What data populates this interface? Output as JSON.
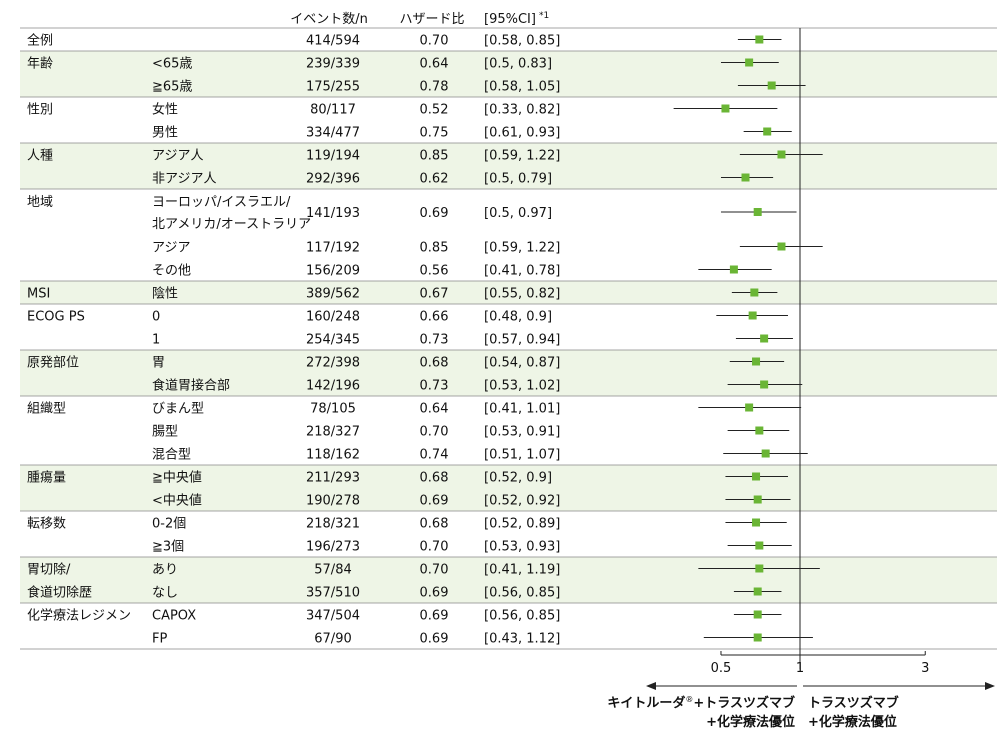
{
  "chart_data": {
    "type": "forest",
    "columns": {
      "events": "イベント数/n",
      "hr": "ハザード比",
      "ci": "[95%CI]",
      "ci_note": "*1"
    },
    "x_axis": {
      "scale": "log",
      "ticks": [
        0.5,
        1,
        3
      ],
      "tick_labels": [
        "0.5",
        "1",
        "3"
      ],
      "range": [
        0.5,
        3
      ],
      "reference": 1
    },
    "direction_labels": {
      "left_line1_a": "キイトルーダ",
      "left_mark": "®",
      "left_line1_b": "+トラスツズマブ",
      "left_line2": "+化学療法優位",
      "right_line1": "トラスツズマブ",
      "right_line2": "+化学療法優位"
    },
    "colors": {
      "marker": "#6ab535",
      "shade": "#eef5e6",
      "line": "#222222"
    },
    "rows": [
      {
        "category": "全例",
        "subgroup": "",
        "events": "414/594",
        "hr": "0.70",
        "ci_text": "[0.58, 0.85]",
        "hr_value": 0.7,
        "ci_low": 0.58,
        "ci_high": 0.85,
        "group": 0
      },
      {
        "category": "年齢",
        "subgroup": "<65歳",
        "events": "239/339",
        "hr": "0.64",
        "ci_text": "[0.5, 0.83]",
        "hr_value": 0.64,
        "ci_low": 0.5,
        "ci_high": 0.83,
        "group": 1
      },
      {
        "category": "",
        "subgroup": "≧65歳",
        "events": "175/255",
        "hr": "0.78",
        "ci_text": "[0.58, 1.05]",
        "hr_value": 0.78,
        "ci_low": 0.58,
        "ci_high": 1.05,
        "group": 1
      },
      {
        "category": "性別",
        "subgroup": "女性",
        "events": "80/117",
        "hr": "0.52",
        "ci_text": "[0.33, 0.82]",
        "hr_value": 0.52,
        "ci_low": 0.33,
        "ci_high": 0.82,
        "group": 2
      },
      {
        "category": "",
        "subgroup": "男性",
        "events": "334/477",
        "hr": "0.75",
        "ci_text": "[0.61, 0.93]",
        "hr_value": 0.75,
        "ci_low": 0.61,
        "ci_high": 0.93,
        "group": 2
      },
      {
        "category": "人種",
        "subgroup": "アジア人",
        "events": "119/194",
        "hr": "0.85",
        "ci_text": "[0.59, 1.22]",
        "hr_value": 0.85,
        "ci_low": 0.59,
        "ci_high": 1.22,
        "group": 3
      },
      {
        "category": "",
        "subgroup": "非アジア人",
        "events": "292/396",
        "hr": "0.62",
        "ci_text": "[0.5, 0.79]",
        "hr_value": 0.62,
        "ci_low": 0.5,
        "ci_high": 0.79,
        "group": 3
      },
      {
        "category": "地域",
        "subgroup": "ヨーロッパ/イスラエル/",
        "subgroup2": "北アメリカ/オーストラリア",
        "events": "141/193",
        "hr": "0.69",
        "ci_text": "[0.5, 0.97]",
        "hr_value": 0.69,
        "ci_low": 0.5,
        "ci_high": 0.97,
        "group": 4,
        "double": true
      },
      {
        "category": "",
        "subgroup": "アジア",
        "events": "117/192",
        "hr": "0.85",
        "ci_text": "[0.59, 1.22]",
        "hr_value": 0.85,
        "ci_low": 0.59,
        "ci_high": 1.22,
        "group": 4
      },
      {
        "category": "",
        "subgroup": "その他",
        "events": "156/209",
        "hr": "0.56",
        "ci_text": "[0.41, 0.78]",
        "hr_value": 0.56,
        "ci_low": 0.41,
        "ci_high": 0.78,
        "group": 4
      },
      {
        "category": "MSI",
        "subgroup": "陰性",
        "events": "389/562",
        "hr": "0.67",
        "ci_text": "[0.55, 0.82]",
        "hr_value": 0.67,
        "ci_low": 0.55,
        "ci_high": 0.82,
        "group": 5
      },
      {
        "category": "ECOG PS",
        "subgroup": "0",
        "events": "160/248",
        "hr": "0.66",
        "ci_text": "[0.48, 0.9]",
        "hr_value": 0.66,
        "ci_low": 0.48,
        "ci_high": 0.9,
        "group": 6
      },
      {
        "category": "",
        "subgroup": "1",
        "events": "254/345",
        "hr": "0.73",
        "ci_text": "[0.57, 0.94]",
        "hr_value": 0.73,
        "ci_low": 0.57,
        "ci_high": 0.94,
        "group": 6
      },
      {
        "category": "原発部位",
        "subgroup": "胃",
        "events": "272/398",
        "hr": "0.68",
        "ci_text": "[0.54, 0.87]",
        "hr_value": 0.68,
        "ci_low": 0.54,
        "ci_high": 0.87,
        "group": 7
      },
      {
        "category": "",
        "subgroup": "食道胃接合部",
        "events": "142/196",
        "hr": "0.73",
        "ci_text": "[0.53, 1.02]",
        "hr_value": 0.73,
        "ci_low": 0.53,
        "ci_high": 1.02,
        "group": 7
      },
      {
        "category": "組織型",
        "subgroup": "びまん型",
        "events": "78/105",
        "hr": "0.64",
        "ci_text": "[0.41, 1.01]",
        "hr_value": 0.64,
        "ci_low": 0.41,
        "ci_high": 1.01,
        "group": 8
      },
      {
        "category": "",
        "subgroup": "腸型",
        "events": "218/327",
        "hr": "0.70",
        "ci_text": "[0.53, 0.91]",
        "hr_value": 0.7,
        "ci_low": 0.53,
        "ci_high": 0.91,
        "group": 8
      },
      {
        "category": "",
        "subgroup": "混合型",
        "events": "118/162",
        "hr": "0.74",
        "ci_text": "[0.51, 1.07]",
        "hr_value": 0.74,
        "ci_low": 0.51,
        "ci_high": 1.07,
        "group": 8
      },
      {
        "category": "腫瘍量",
        "subgroup": "≧中央値",
        "events": "211/293",
        "hr": "0.68",
        "ci_text": "[0.52, 0.9]",
        "hr_value": 0.68,
        "ci_low": 0.52,
        "ci_high": 0.9,
        "group": 9
      },
      {
        "category": "",
        "subgroup": "<中央値",
        "events": "190/278",
        "hr": "0.69",
        "ci_text": "[0.52, 0.92]",
        "hr_value": 0.69,
        "ci_low": 0.52,
        "ci_high": 0.92,
        "group": 9
      },
      {
        "category": "転移数",
        "subgroup": "0-2個",
        "events": "218/321",
        "hr": "0.68",
        "ci_text": "[0.52, 0.89]",
        "hr_value": 0.68,
        "ci_low": 0.52,
        "ci_high": 0.89,
        "group": 10
      },
      {
        "category": "",
        "subgroup": "≧3個",
        "events": "196/273",
        "hr": "0.70",
        "ci_text": "[0.53, 0.93]",
        "hr_value": 0.7,
        "ci_low": 0.53,
        "ci_high": 0.93,
        "group": 10
      },
      {
        "category": "胃切除/",
        "subgroup": "あり",
        "events": "57/84",
        "hr": "0.70",
        "ci_text": "[0.41, 1.19]",
        "hr_value": 0.7,
        "ci_low": 0.41,
        "ci_high": 1.19,
        "group": 11
      },
      {
        "category": "食道切除歴",
        "subgroup": "なし",
        "events": "357/510",
        "hr": "0.69",
        "ci_text": "[0.56, 0.85]",
        "hr_value": 0.69,
        "ci_low": 0.56,
        "ci_high": 0.85,
        "group": 11
      },
      {
        "category": "化学療法レジメン",
        "subgroup": "CAPOX",
        "events": "347/504",
        "hr": "0.69",
        "ci_text": "[0.56, 0.85]",
        "hr_value": 0.69,
        "ci_low": 0.56,
        "ci_high": 0.85,
        "group": 12
      },
      {
        "category": "",
        "subgroup": "FP",
        "events": "67/90",
        "hr": "0.69",
        "ci_text": "[0.43, 1.12]",
        "hr_value": 0.69,
        "ci_low": 0.43,
        "ci_high": 1.12,
        "group": 12
      }
    ]
  }
}
